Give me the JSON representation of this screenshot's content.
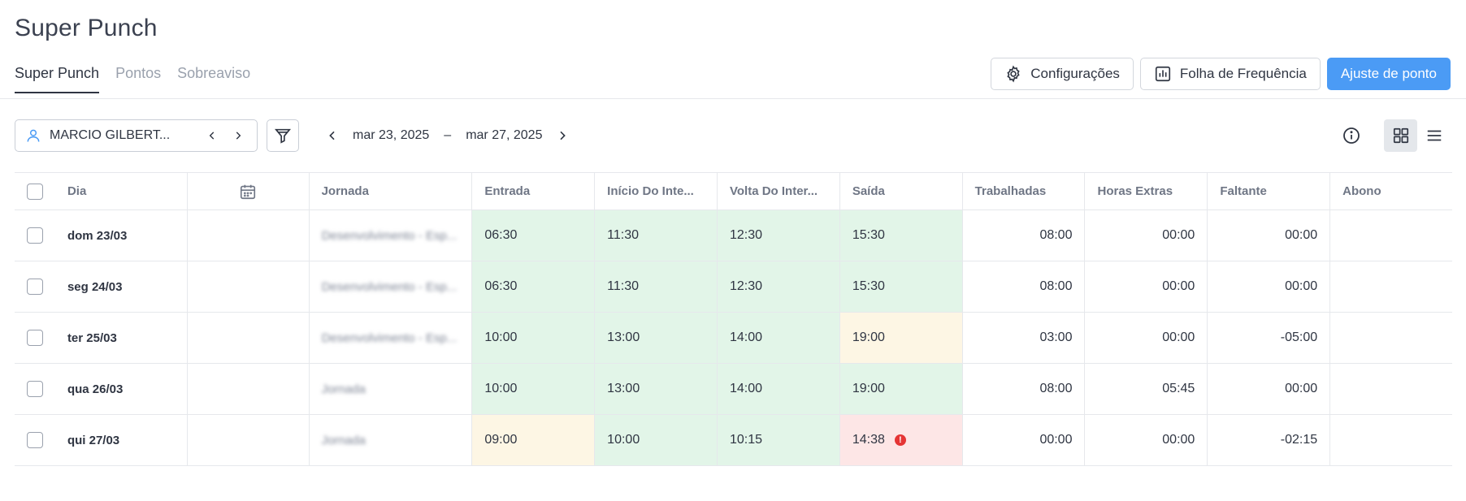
{
  "page": {
    "title": "Super Punch"
  },
  "tabs": [
    {
      "label": "Super Punch",
      "active": true
    },
    {
      "label": "Pontos",
      "active": false
    },
    {
      "label": "Sobreaviso",
      "active": false
    }
  ],
  "actions": {
    "settings_label": "Configurações",
    "attendance_label": "Folha de Frequência",
    "adjust_label": "Ajuste de ponto"
  },
  "toolbar": {
    "employee_name": "MARCIO GILBERT...",
    "date_start": "mar 23, 2025",
    "date_separator": "–",
    "date_end": "mar 27, 2025"
  },
  "colors": {
    "accent": "#4b9bf5",
    "ok": "#e2f5e8",
    "warning": "#fdf6e4",
    "error": "#fde6e6",
    "alert": "#e53535"
  },
  "table": {
    "headers": {
      "dia": "Dia",
      "jornada": "Jornada",
      "entrada": "Entrada",
      "inicio": "Início Do Inte...",
      "volta": "Volta Do Inter...",
      "saida": "Saída",
      "trabalhadas": "Trabalhadas",
      "extras": "Horas Extras",
      "faltante": "Faltante",
      "abono": "Abono"
    },
    "rows": [
      {
        "dia": "dom 23/03",
        "jornada": "Desenvolvimento - Esp...",
        "entrada": "06:30",
        "inicio": "11:30",
        "volta": "12:30",
        "saida": "15:30",
        "trabalhadas": "08:00",
        "extras": "00:00",
        "faltante": "00:00",
        "abono": "",
        "status": [
          "green",
          "green",
          "green",
          "green"
        ],
        "alert": false
      },
      {
        "dia": "seg 24/03",
        "jornada": "Desenvolvimento - Esp...",
        "entrada": "06:30",
        "inicio": "11:30",
        "volta": "12:30",
        "saida": "15:30",
        "trabalhadas": "08:00",
        "extras": "00:00",
        "faltante": "00:00",
        "abono": "",
        "status": [
          "green",
          "green",
          "green",
          "green"
        ],
        "alert": false
      },
      {
        "dia": "ter 25/03",
        "jornada": "Desenvolvimento - Esp...",
        "entrada": "10:00",
        "inicio": "13:00",
        "volta": "14:00",
        "saida": "19:00",
        "trabalhadas": "03:00",
        "extras": "00:00",
        "faltante": "-05:00",
        "abono": "",
        "status": [
          "green",
          "green",
          "green",
          "yellow"
        ],
        "alert": false
      },
      {
        "dia": "qua 26/03",
        "jornada": "Jornada",
        "entrada": "10:00",
        "inicio": "13:00",
        "volta": "14:00",
        "saida": "19:00",
        "trabalhadas": "08:00",
        "extras": "05:45",
        "faltante": "00:00",
        "abono": "",
        "status": [
          "green",
          "green",
          "green",
          "green"
        ],
        "alert": false
      },
      {
        "dia": "qui 27/03",
        "jornada": "Jornada",
        "entrada": "09:00",
        "inicio": "10:00",
        "volta": "10:15",
        "saida": "14:38",
        "trabalhadas": "00:00",
        "extras": "00:00",
        "faltante": "-02:15",
        "abono": "",
        "status": [
          "yellow",
          "green",
          "green",
          "red"
        ],
        "alert": true
      }
    ]
  }
}
